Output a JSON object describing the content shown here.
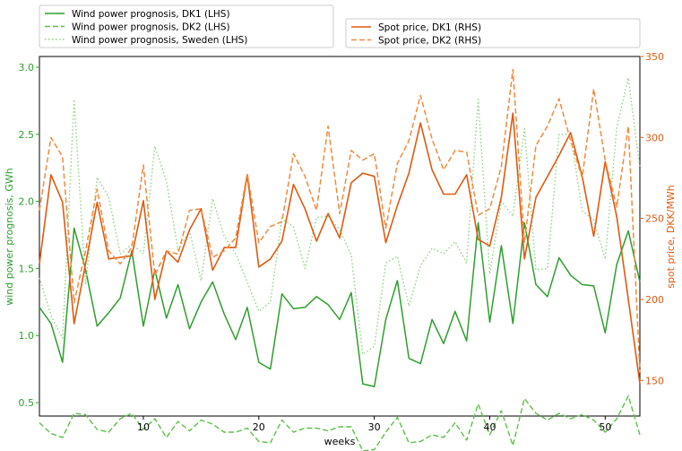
{
  "chart_data": {
    "type": "line",
    "xlabel": "weeks",
    "ylabel_left": "wind power prognosis, GWh",
    "ylabel_right": "spot price, DKK/MWh",
    "xlim": [
      1,
      53
    ],
    "ylim_left": [
      0.4,
      3.08
    ],
    "ylim_right": [
      128,
      350
    ],
    "x_ticks": [
      10,
      20,
      30,
      40,
      50
    ],
    "y_ticks_left": [
      0.5,
      1.0,
      1.5,
      2.0,
      2.5,
      3.0
    ],
    "y_ticks_right": [
      150,
      200,
      250,
      300,
      350
    ],
    "grid": false,
    "legend_left_placement": "top-left, above plot",
    "legend_right_placement": "top-right, above plot",
    "colors": {
      "left_axis": "#2ca02c",
      "right_axis": "#e05a10"
    },
    "x": [
      1,
      2,
      3,
      4,
      5,
      6,
      7,
      8,
      9,
      10,
      11,
      12,
      13,
      14,
      15,
      16,
      17,
      18,
      19,
      20,
      21,
      22,
      23,
      24,
      25,
      26,
      27,
      28,
      29,
      30,
      31,
      32,
      33,
      34,
      35,
      36,
      37,
      38,
      39,
      40,
      41,
      42,
      43,
      44,
      45,
      46,
      47,
      48,
      49,
      50,
      51,
      52,
      53
    ],
    "series": [
      {
        "name": "Wind power prognosis, DK1 (LHS)",
        "axis": "left",
        "color": "#2ca02c",
        "dash": "solid",
        "width": 1.5,
        "values": [
          1.21,
          1.09,
          0.8,
          1.8,
          1.49,
          1.07,
          1.17,
          1.28,
          1.63,
          1.07,
          1.49,
          1.13,
          1.38,
          1.05,
          1.25,
          1.4,
          1.16,
          0.97,
          1.21,
          0.8,
          0.75,
          1.31,
          1.2,
          1.21,
          1.29,
          1.23,
          1.12,
          1.32,
          0.64,
          0.62,
          1.12,
          1.41,
          0.83,
          0.79,
          1.12,
          0.94,
          1.18,
          0.96,
          1.84,
          1.1,
          1.67,
          1.09,
          1.84,
          1.38,
          1.29,
          1.58,
          1.45,
          1.38,
          1.37,
          1.02,
          1.53,
          1.78,
          1.4
        ]
      },
      {
        "name": "Wind power prognosis, DK2 (LHS)",
        "axis": "left",
        "color": "#5cbf46",
        "dash": "dashed",
        "width": 1.4,
        "values": [
          0.35,
          0.27,
          0.24,
          0.42,
          0.41,
          0.3,
          0.28,
          0.38,
          0.42,
          0.3,
          0.38,
          0.24,
          0.36,
          0.29,
          0.37,
          0.34,
          0.28,
          0.28,
          0.31,
          0.21,
          0.2,
          0.37,
          0.28,
          0.31,
          0.31,
          0.29,
          0.32,
          0.32,
          0.14,
          0.15,
          0.28,
          0.39,
          0.2,
          0.21,
          0.26,
          0.24,
          0.35,
          0.22,
          0.49,
          0.26,
          0.44,
          0.18,
          0.53,
          0.42,
          0.37,
          0.42,
          0.38,
          0.41,
          0.37,
          0.28,
          0.38,
          0.55,
          0.26
        ]
      },
      {
        "name": "Wind power prognosis, Sweden (LHS)",
        "axis": "left",
        "color": "#8cd47e",
        "dash": "dotted",
        "width": 1.4,
        "values": [
          1.43,
          1.15,
          0.98,
          2.76,
          1.38,
          2.18,
          2.03,
          1.61,
          1.68,
          1.61,
          2.41,
          2.15,
          1.64,
          1.78,
          1.41,
          2.02,
          1.74,
          1.61,
          1.4,
          1.18,
          1.25,
          1.87,
          1.81,
          1.5,
          1.88,
          1.89,
          1.79,
          1.6,
          0.86,
          0.92,
          1.54,
          1.59,
          1.22,
          1.52,
          1.65,
          1.61,
          1.7,
          1.54,
          2.76,
          1.46,
          2.0,
          1.89,
          2.54,
          1.49,
          1.5,
          2.5,
          2.5,
          1.93,
          1.86,
          1.57,
          2.55,
          2.92,
          2.25
        ]
      },
      {
        "name": "Spot price, DK1 (RHS)",
        "axis": "right",
        "color": "#e05a10",
        "dash": "solid",
        "width": 1.6,
        "values": [
          222,
          277,
          260,
          185,
          222,
          260,
          225,
          226,
          227,
          261,
          200,
          230,
          223,
          243,
          256,
          218,
          232,
          232,
          277,
          220,
          225,
          236,
          271,
          256,
          236,
          253,
          238,
          272,
          278,
          276,
          235,
          258,
          278,
          309,
          280,
          265,
          265,
          277,
          237,
          233,
          263,
          315,
          225,
          263,
          276,
          289,
          303,
          276,
          239,
          285,
          251,
          200,
          148
        ]
      },
      {
        "name": "Spot price, DK2 (RHS)",
        "axis": "right",
        "color": "#f28a3c",
        "dash": "dashed",
        "width": 1.5,
        "values": [
          255,
          300,
          288,
          198,
          230,
          268,
          230,
          222,
          232,
          283,
          215,
          230,
          228,
          255,
          256,
          226,
          230,
          238,
          278,
          235,
          245,
          248,
          290,
          276,
          255,
          307,
          253,
          292,
          286,
          290,
          244,
          284,
          298,
          326,
          299,
          280,
          292,
          291,
          252,
          256,
          282,
          342,
          235,
          295,
          307,
          324,
          298,
          275,
          330,
          286,
          257,
          307,
          155
        ]
      }
    ]
  }
}
